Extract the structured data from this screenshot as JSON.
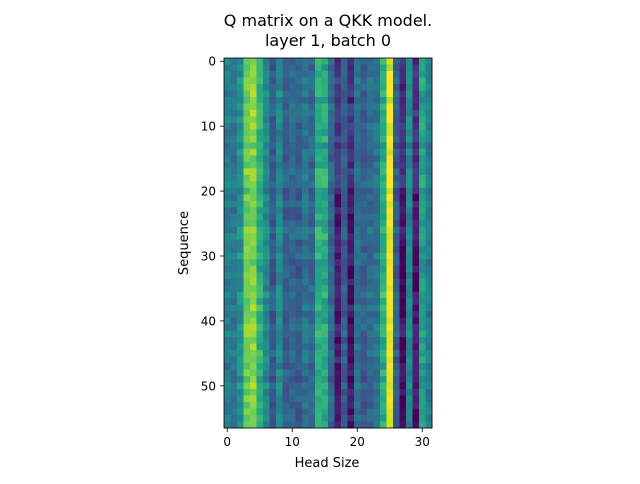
{
  "chart_data": {
    "type": "heatmap",
    "title": "Q matrix on a QKK model.\nlayer 1, batch 0",
    "xlabel": "Head Size",
    "ylabel": "Sequence",
    "x_ticks": [
      "0",
      "10",
      "20",
      "30"
    ],
    "y_ticks": [
      "0",
      "10",
      "20",
      "30",
      "40",
      "50"
    ],
    "n_cols": 32,
    "n_rows": 57,
    "colormap": "viridis",
    "column_profile": [
      0.42,
      0.4,
      0.5,
      0.78,
      0.82,
      0.62,
      0.46,
      0.28,
      0.46,
      0.3,
      0.32,
      0.3,
      0.38,
      0.34,
      0.62,
      0.6,
      0.34,
      0.16,
      0.3,
      0.14,
      0.36,
      0.3,
      0.34,
      0.38,
      0.62,
      0.96,
      0.28,
      0.12,
      0.46,
      0.14,
      0.56,
      0.42
    ],
    "note_values": "approximate normalized intensities (0=dark purple, 1=yellow); grid lines off"
  }
}
